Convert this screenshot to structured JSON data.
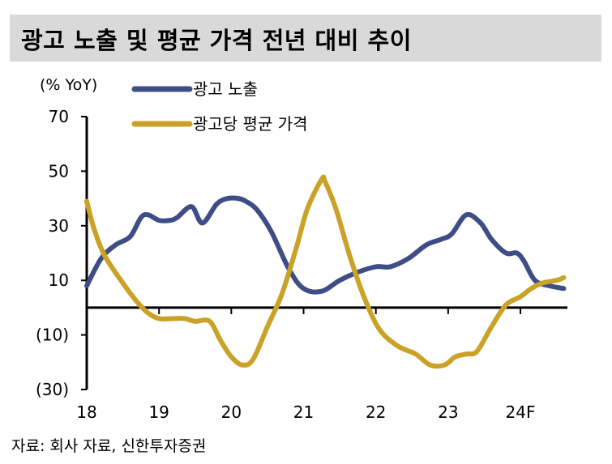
{
  "title": "광고 노출 및 평균 가격 전년 대비 추이",
  "source": "자료: 회사 자료, 신한투자증권",
  "chart_data": {
    "type": "line",
    "unit_label": "(% YoY)",
    "x_ticks": [
      "18",
      "19",
      "20",
      "21",
      "22",
      "23",
      "24F"
    ],
    "x_range": [
      2018,
      2024.65
    ],
    "ylim": [
      -30,
      70
    ],
    "y_ticks": [
      70,
      50,
      30,
      10,
      -10,
      -30
    ],
    "y_tick_labels": [
      "70",
      "50",
      "30",
      "10",
      "(10)",
      "(30)"
    ],
    "legend_position": "top",
    "series": [
      {
        "name": "광고 노출",
        "color": "#3f4d87",
        "x": [
          2018.0,
          2018.2,
          2018.4,
          2018.6,
          2018.75,
          2018.85,
          2019.0,
          2019.15,
          2019.25,
          2019.45,
          2019.6,
          2019.8,
          2019.95,
          2020.1,
          2020.2,
          2020.35,
          2020.55,
          2020.8,
          2021.0,
          2021.25,
          2021.5,
          2021.75,
          2022.0,
          2022.2,
          2022.45,
          2022.7,
          2022.9,
          2023.05,
          2023.25,
          2023.45,
          2023.6,
          2023.8,
          2023.95,
          2024.05,
          2024.2,
          2024.4,
          2024.6
        ],
        "y": [
          8,
          18,
          23,
          26,
          33,
          34,
          32,
          32,
          33,
          37,
          31,
          38,
          40,
          40,
          39,
          36,
          28,
          14,
          7,
          6,
          10,
          13,
          15,
          15,
          18,
          23,
          25,
          27,
          34,
          31,
          25,
          20,
          20,
          17,
          10,
          8,
          7
        ]
      },
      {
        "name": "광고당 평균 가격",
        "color": "#c9a227",
        "x": [
          2018.0,
          2018.1,
          2018.25,
          2018.5,
          2018.7,
          2018.85,
          2019.0,
          2019.2,
          2019.35,
          2019.5,
          2019.7,
          2019.85,
          2020.0,
          2020.15,
          2020.3,
          2020.5,
          2020.7,
          2020.9,
          2021.05,
          2021.25,
          2021.3,
          2021.45,
          2021.65,
          2021.85,
          2022.05,
          2022.3,
          2022.55,
          2022.75,
          2022.95,
          2023.1,
          2023.25,
          2023.4,
          2023.6,
          2023.8,
          2024.0,
          2024.15,
          2024.3,
          2024.5,
          2024.6
        ],
        "y": [
          39,
          29,
          19,
          9,
          2,
          -2,
          -4,
          -4,
          -4,
          -5,
          -5,
          -12,
          -18,
          -21,
          -19,
          -7,
          5,
          22,
          36,
          47,
          46,
          36,
          18,
          3,
          -8,
          -14,
          -17,
          -21,
          -21,
          -18,
          -17,
          -16,
          -7,
          1,
          4,
          7,
          9,
          10,
          11
        ]
      }
    ]
  }
}
